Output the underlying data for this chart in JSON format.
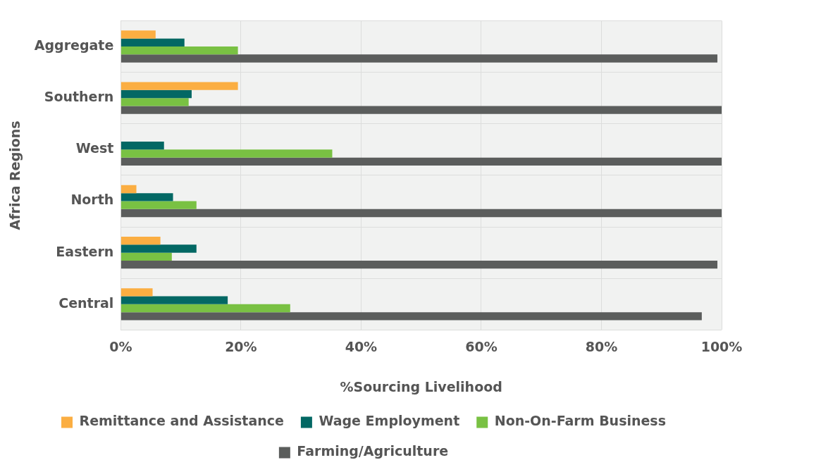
{
  "chart_data": {
    "type": "bar",
    "orientation": "horizontal",
    "xlabel": "%Sourcing Livelihood",
    "ylabel": "Africa Regions",
    "categories": [
      "Aggregate",
      "Southern",
      "West",
      "North",
      "Eastern",
      "Central"
    ],
    "series": [
      {
        "name": "Remittance and Assistance",
        "color": "#fbae42",
        "values": [
          5.8,
          19.5,
          null,
          2.6,
          6.6,
          5.3
        ]
      },
      {
        "name": "Wage Employment",
        "color": "#036864",
        "values": [
          10.6,
          11.8,
          7.2,
          8.7,
          12.6,
          17.8
        ]
      },
      {
        "name": "Non-On-Farm Business",
        "color": "#79c143",
        "values": [
          19.5,
          11.3,
          35.2,
          12.6,
          8.5,
          28.2
        ]
      },
      {
        "name": "Farming/Agriculture",
        "color": "#5b5d5c",
        "values": [
          99.3,
          100,
          100,
          100,
          99.3,
          96.7
        ]
      }
    ],
    "xlim": [
      0,
      100
    ],
    "xticks": [
      {
        "value": 0,
        "label": "0%"
      },
      {
        "value": 20,
        "label": "20%"
      },
      {
        "value": 40,
        "label": "40%"
      },
      {
        "value": 60,
        "label": "60%"
      },
      {
        "value": 80,
        "label": "80%"
      },
      {
        "value": 100,
        "label": "100%"
      }
    ],
    "grid": true,
    "legend": "bottom"
  }
}
